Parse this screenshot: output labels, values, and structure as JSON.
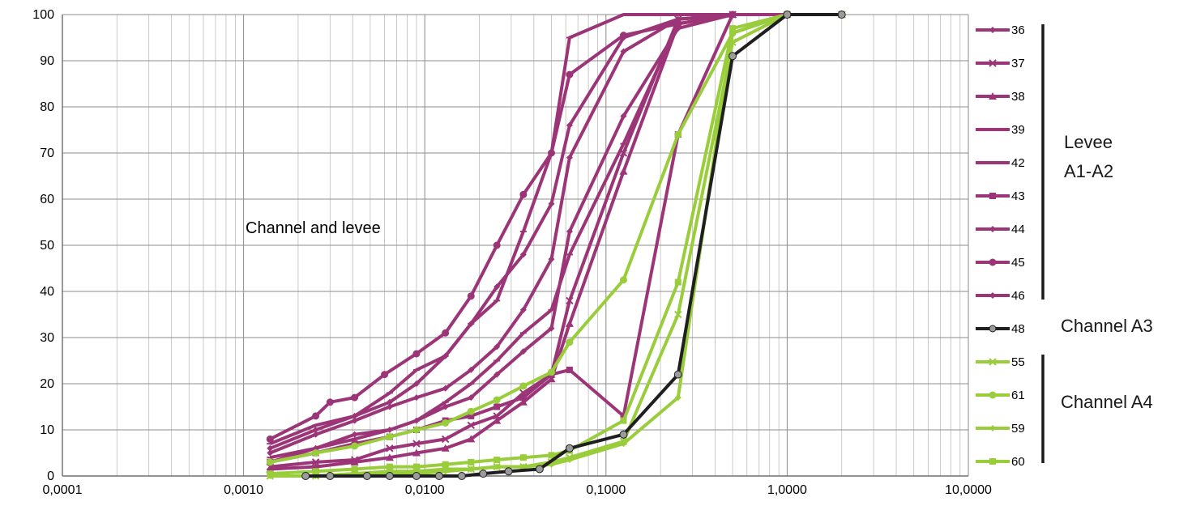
{
  "chart_data": {
    "type": "line",
    "x_scale": "log",
    "xlim": [
      0.0001,
      10
    ],
    "ylim": [
      0,
      100
    ],
    "grid": true,
    "legend_position": "right",
    "xlabel": "",
    "ylabel": "",
    "x_tick_labels": [
      "0,0001",
      "0,0010",
      "0,0100",
      "0,1000",
      "1,0000",
      "10,0000"
    ],
    "y_tick_labels": [
      "0",
      "10",
      "20",
      "30",
      "40",
      "50",
      "60",
      "70",
      "80",
      "90",
      "100"
    ],
    "annotation": "Channel and levee",
    "colors": {
      "levee": "#9b3577",
      "channel_a3": "#1f1f1f",
      "channel_a4": "#9acd3c"
    },
    "groups": [
      {
        "label": "Levee A1-A2",
        "series": [
          "36",
          "37",
          "38",
          "39",
          "42",
          "43",
          "44",
          "45",
          "46"
        ]
      },
      {
        "label": "Channel A3",
        "series": [
          "48"
        ]
      },
      {
        "label": "Channel A4",
        "series": [
          "55",
          "61",
          "59",
          "60"
        ]
      }
    ],
    "series": [
      {
        "name": "36",
        "group": "levee",
        "marker": "diamond",
        "x": [
          0.0014,
          0.0025,
          0.0041,
          0.0064,
          0.009,
          0.013,
          0.018,
          0.025,
          0.035,
          0.05,
          0.063,
          0.125,
          0.25,
          0.5,
          1.0,
          2.0
        ],
        "y": [
          5,
          9,
          12,
          15,
          17,
          19,
          23,
          28,
          36,
          47,
          69,
          92,
          99,
          100,
          100,
          100
        ]
      },
      {
        "name": "37",
        "group": "levee",
        "marker": "x",
        "x": [
          0.0014,
          0.0025,
          0.0041,
          0.0064,
          0.009,
          0.013,
          0.018,
          0.025,
          0.035,
          0.05,
          0.063,
          0.125,
          0.25,
          0.5,
          1.0,
          2.0
        ],
        "y": [
          2,
          3,
          3.5,
          6,
          7,
          8,
          11,
          13,
          18,
          22,
          38,
          70,
          99,
          100,
          100,
          100
        ]
      },
      {
        "name": "38",
        "group": "levee",
        "marker": "triangle",
        "x": [
          0.0014,
          0.0025,
          0.0041,
          0.0064,
          0.009,
          0.013,
          0.018,
          0.025,
          0.035,
          0.05,
          0.063,
          0.125,
          0.25,
          0.5,
          1.0,
          2.0
        ],
        "y": [
          1.5,
          2,
          3,
          4,
          5,
          6,
          8,
          12,
          16,
          21,
          33,
          66,
          98,
          100,
          100,
          100
        ]
      },
      {
        "name": "39",
        "group": "levee",
        "marker": "dash",
        "x": [
          0.0014,
          0.0025,
          0.0041,
          0.0064,
          0.009,
          0.013,
          0.018,
          0.025,
          0.035,
          0.05,
          0.063,
          0.125,
          0.25,
          0.5,
          1.0,
          2.0
        ],
        "y": [
          7,
          11,
          13,
          18,
          23,
          26,
          33,
          38,
          53,
          70,
          95,
          100,
          100,
          100,
          100,
          100
        ]
      },
      {
        "name": "42",
        "group": "levee",
        "marker": "dash",
        "x": [
          0.0014,
          0.0025,
          0.0041,
          0.0064,
          0.009,
          0.013,
          0.018,
          0.025,
          0.035,
          0.05,
          0.063,
          0.125,
          0.25,
          0.5,
          1.0,
          2.0
        ],
        "y": [
          4,
          6,
          8,
          10,
          12,
          16,
          20,
          25,
          31,
          36,
          48,
          72,
          98,
          100,
          100,
          100
        ]
      },
      {
        "name": "43",
        "group": "levee",
        "marker": "square",
        "x": [
          0.0014,
          0.0025,
          0.0041,
          0.0064,
          0.009,
          0.013,
          0.018,
          0.025,
          0.035,
          0.05,
          0.063,
          0.125,
          0.25,
          0.5,
          1.0,
          2.0
        ],
        "y": [
          3,
          5,
          7,
          8.5,
          10,
          12,
          13,
          15,
          17,
          22,
          23,
          13,
          74,
          100,
          100,
          100
        ]
      },
      {
        "name": "44",
        "group": "levee",
        "marker": "diamond",
        "x": [
          0.0014,
          0.0025,
          0.0041,
          0.0064,
          0.009,
          0.013,
          0.018,
          0.025,
          0.035,
          0.05,
          0.063,
          0.125,
          0.25,
          0.5,
          1.0,
          2.0
        ],
        "y": [
          6,
          10,
          13,
          16,
          20,
          26,
          33,
          41,
          48,
          59,
          76,
          95,
          99,
          100,
          100,
          100
        ]
      },
      {
        "name": "45",
        "group": "levee",
        "marker": "circle",
        "x": [
          0.0014,
          0.0025,
          0.003,
          0.0041,
          0.006,
          0.009,
          0.013,
          0.018,
          0.025,
          0.035,
          0.05,
          0.063,
          0.125,
          0.25,
          0.5,
          1.0,
          2.0
        ],
        "y": [
          8,
          13,
          16,
          17,
          22,
          26.5,
          31,
          39,
          50,
          61,
          70,
          87,
          95.5,
          98,
          100,
          100,
          100
        ]
      },
      {
        "name": "46",
        "group": "levee",
        "marker": "diamond",
        "x": [
          0.0014,
          0.0025,
          0.0041,
          0.0064,
          0.009,
          0.013,
          0.018,
          0.025,
          0.035,
          0.05,
          0.063,
          0.125,
          0.25,
          0.5,
          1.0,
          2.0
        ],
        "y": [
          3,
          6,
          9,
          10,
          12,
          15,
          17,
          22,
          27,
          32,
          53,
          78,
          97,
          100,
          100,
          100
        ]
      },
      {
        "name": "48",
        "group": "a3",
        "marker": "circle",
        "x": [
          0.0022,
          0.003,
          0.0048,
          0.0064,
          0.009,
          0.012,
          0.016,
          0.021,
          0.029,
          0.043,
          0.063,
          0.125,
          0.25,
          0.5,
          1.0,
          2.0
        ],
        "y": [
          0,
          0,
          0,
          0,
          0,
          0,
          0,
          0.5,
          1,
          1.5,
          6,
          9,
          22,
          91,
          100,
          100
        ]
      },
      {
        "name": "55",
        "group": "a4",
        "marker": "x",
        "x": [
          0.0014,
          0.0025,
          0.0041,
          0.0064,
          0.009,
          0.013,
          0.018,
          0.025,
          0.035,
          0.05,
          0.063,
          0.125,
          0.25,
          0.5,
          1.0,
          2.0
        ],
        "y": [
          0,
          0,
          0.5,
          1,
          1,
          1.5,
          1.5,
          2,
          2,
          3,
          4,
          7.5,
          35,
          94,
          100,
          100
        ]
      },
      {
        "name": "61",
        "group": "a4",
        "marker": "circle",
        "x": [
          0.0014,
          0.0025,
          0.0041,
          0.0064,
          0.009,
          0.013,
          0.018,
          0.025,
          0.035,
          0.05,
          0.063,
          0.125,
          0.25,
          0.5,
          1.0,
          2.0
        ],
        "y": [
          3,
          5,
          6.5,
          8.5,
          10,
          11.5,
          14,
          16.5,
          19.5,
          22.5,
          29,
          42.5,
          74,
          96,
          100,
          100
        ]
      },
      {
        "name": "59",
        "group": "a4",
        "marker": "diamond",
        "x": [
          0.0014,
          0.0025,
          0.0041,
          0.0064,
          0.009,
          0.013,
          0.018,
          0.025,
          0.035,
          0.05,
          0.063,
          0.125,
          0.25,
          0.5,
          1.0,
          2.0
        ],
        "y": [
          0,
          0,
          0.5,
          0.5,
          0.5,
          1,
          1.5,
          2,
          2,
          2.5,
          3.5,
          7,
          17,
          96,
          100,
          100
        ]
      },
      {
        "name": "60",
        "group": "a4",
        "marker": "square",
        "x": [
          0.0014,
          0.0025,
          0.0041,
          0.0064,
          0.009,
          0.013,
          0.018,
          0.025,
          0.035,
          0.05,
          0.063,
          0.125,
          0.25,
          0.5,
          1.0,
          2.0
        ],
        "y": [
          0.5,
          1,
          1.5,
          2,
          2,
          2.5,
          3,
          3.5,
          4,
          4.5,
          5.5,
          12,
          42,
          97,
          100,
          100
        ]
      }
    ]
  }
}
